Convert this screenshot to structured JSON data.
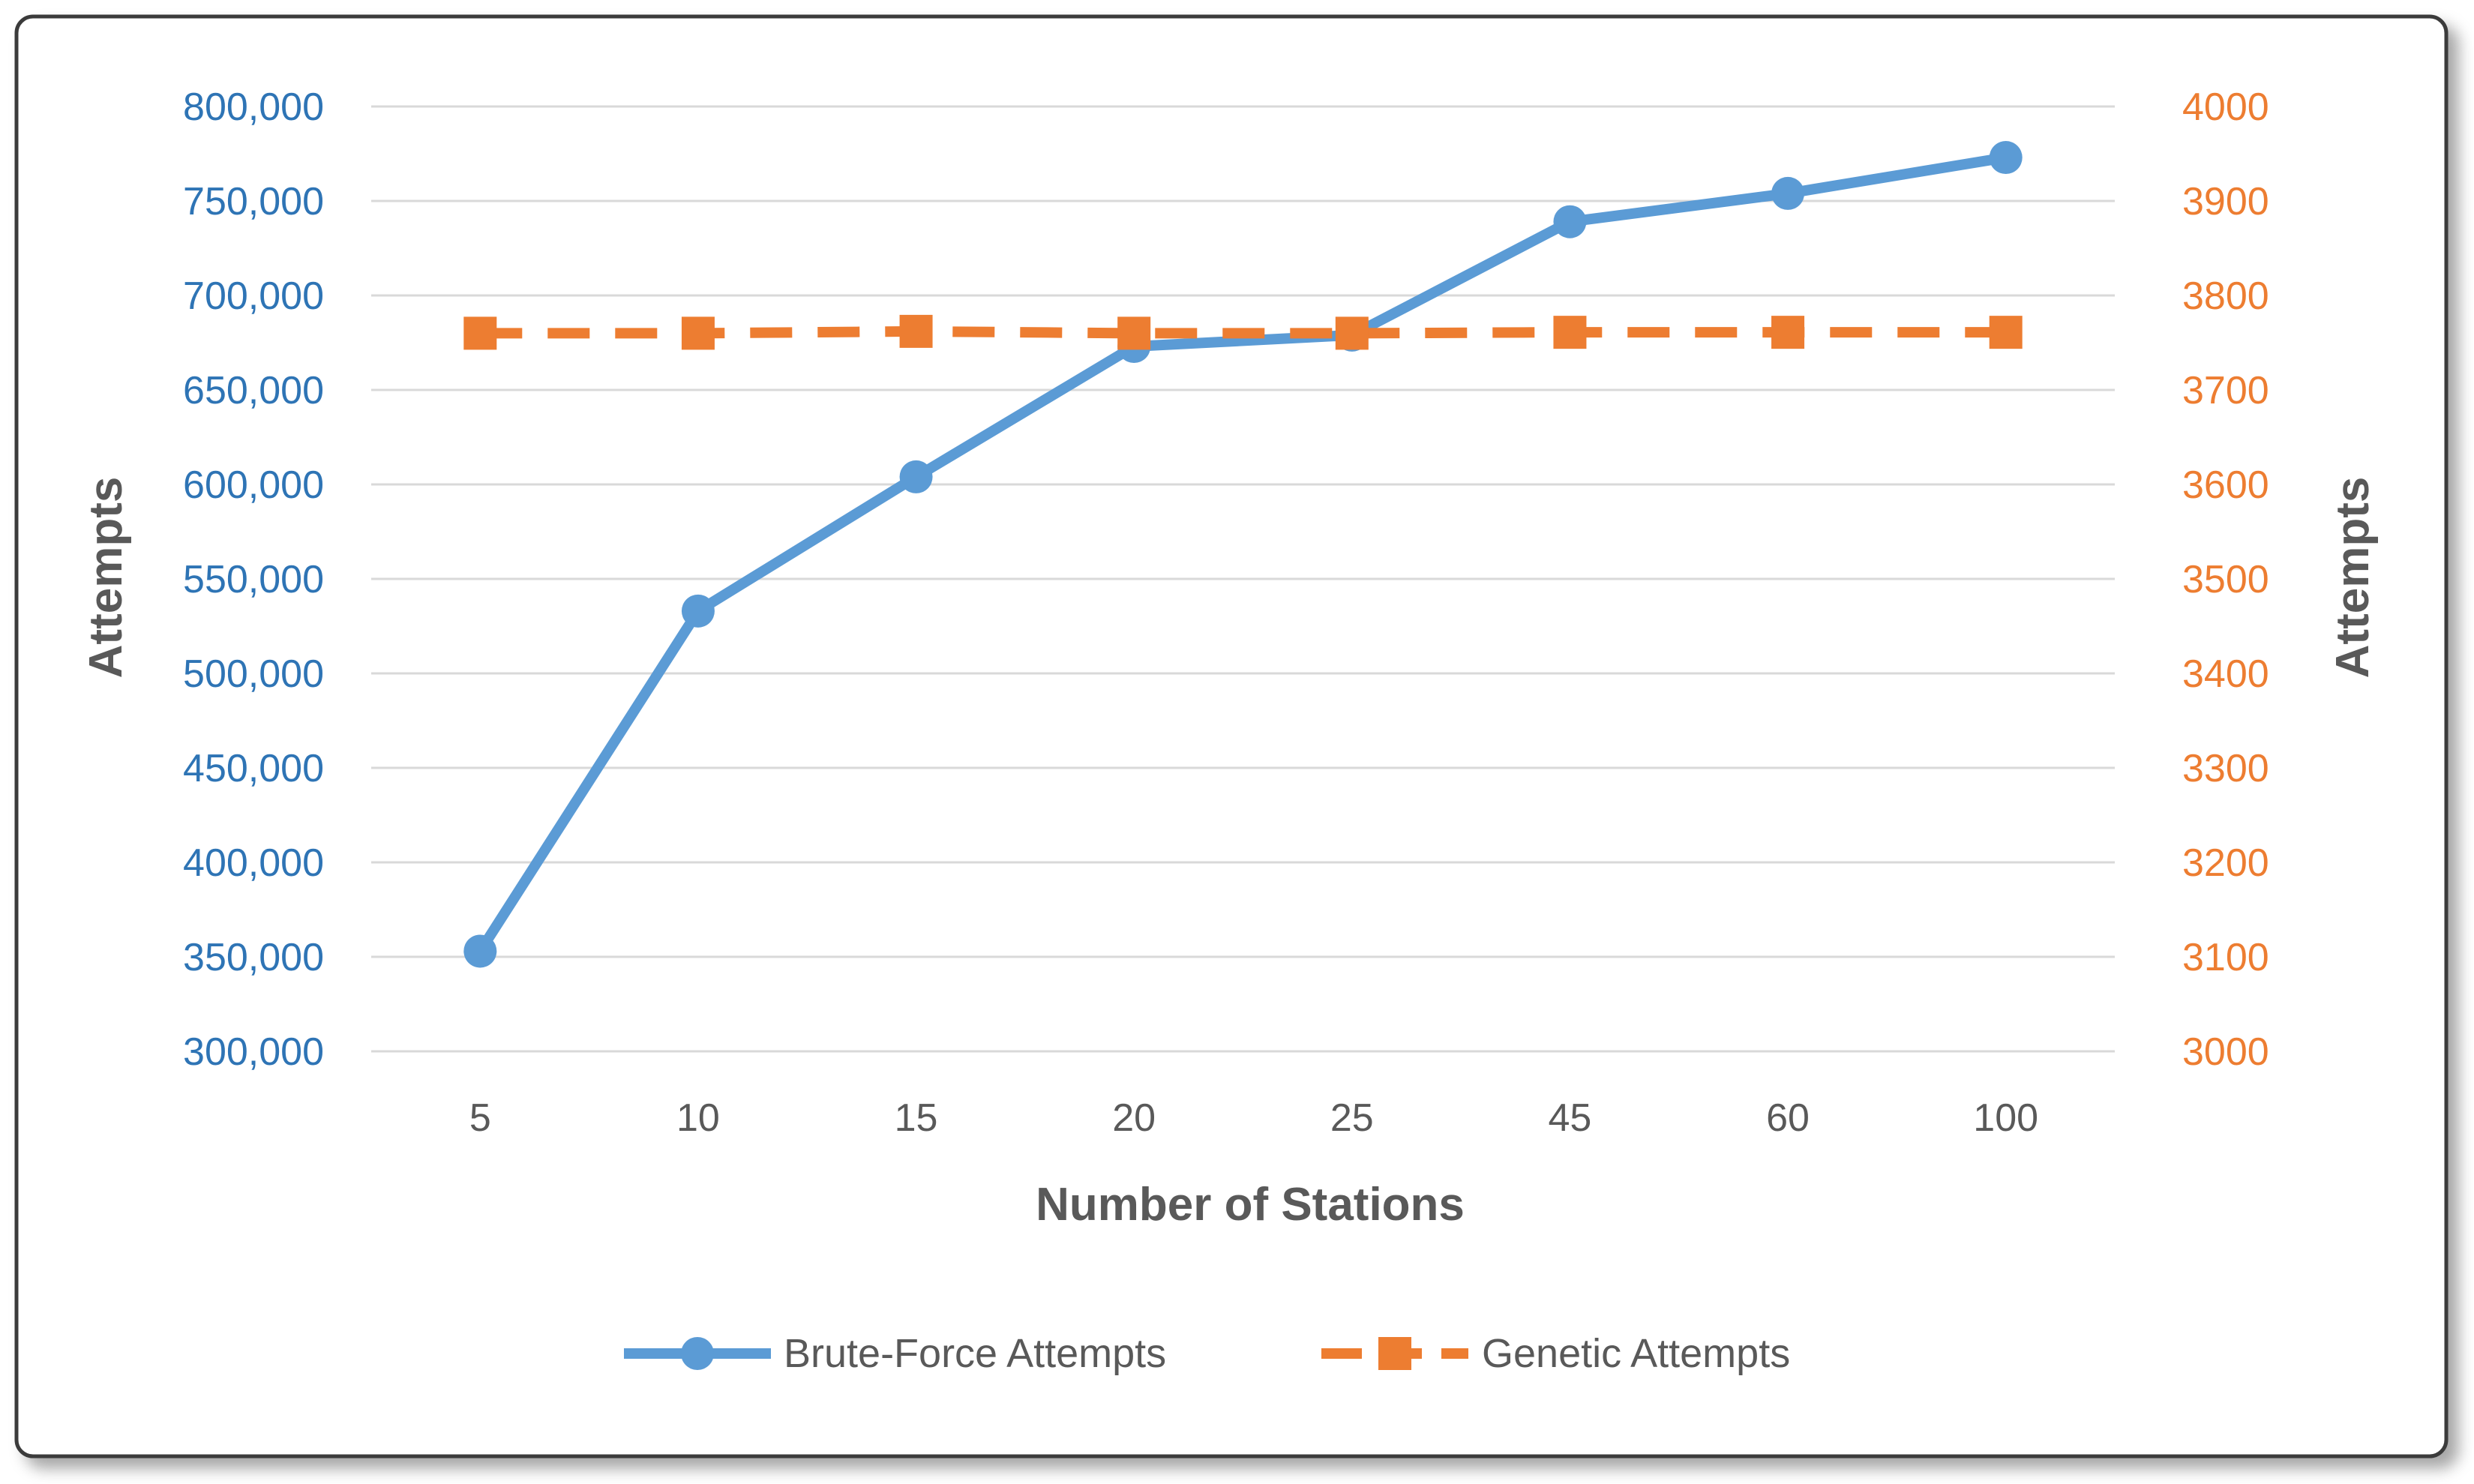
{
  "chart_data": {
    "type": "line",
    "categories": [
      "5",
      "10",
      "15",
      "20",
      "25",
      "45",
      "60",
      "100"
    ],
    "xlabel": "Number of Stations",
    "ylabel_left": "Attempts",
    "ylabel_right": "Attempts",
    "y_left": {
      "min": 300000,
      "max": 800000,
      "step": 50000,
      "tick_labels": [
        "300,000",
        "350,000",
        "400,000",
        "450,000",
        "500,000",
        "550,000",
        "600,000",
        "650,000",
        "700,000",
        "750,000",
        "800,000"
      ]
    },
    "y_right": {
      "min": 3000,
      "max": 4000,
      "step": 100,
      "tick_labels": [
        "3000",
        "3100",
        "3200",
        "3300",
        "3400",
        "3500",
        "3600",
        "3700",
        "3800",
        "3900",
        "4000"
      ]
    },
    "grid": true,
    "legend_position": "bottom",
    "series": [
      {
        "name": "Brute-Force Attempts",
        "axis": "left",
        "color": "#5b9bd5",
        "marker": "circle",
        "line_style": "solid",
        "values": [
          353000,
          533000,
          604000,
          673000,
          679000,
          739000,
          754000,
          773000
        ]
      },
      {
        "name": "Genetic Attempts",
        "axis": "right",
        "color": "#ed7d31",
        "marker": "square",
        "line_style": "dashed",
        "values": [
          3760,
          3760,
          3762,
          3760,
          3760,
          3761,
          3761,
          3761
        ]
      }
    ]
  }
}
